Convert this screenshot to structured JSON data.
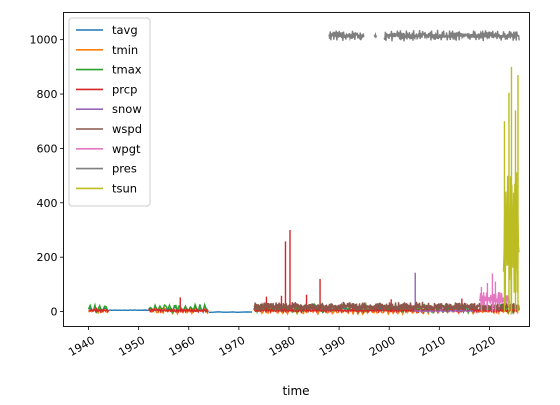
{
  "chart_data": {
    "type": "line",
    "xlabel": "time",
    "ylabel": "",
    "xlim": [
      1935,
      2028
    ],
    "ylim": [
      -55,
      1100
    ],
    "x_ticks": [
      1940,
      1950,
      1960,
      1970,
      1980,
      1990,
      2000,
      2010,
      2020
    ],
    "x_tick_labels": [
      "1940",
      "1950",
      "1960",
      "1970",
      "1980",
      "1990",
      "2000",
      "2010",
      "2020"
    ],
    "y_ticks": [
      0,
      200,
      400,
      600,
      800,
      1000
    ],
    "y_tick_labels": [
      "0",
      "200",
      "400",
      "600",
      "800",
      "1000"
    ],
    "legend_position": "top-left",
    "grid": false,
    "series": [
      {
        "name": "tavg",
        "color": "#1f77b4",
        "segments": [
          {
            "start": 1940,
            "end": 1944,
            "base": 8,
            "amp": 12,
            "cycle": 1
          },
          {
            "start": 1944,
            "end": 1952,
            "base": 5,
            "amp": 1,
            "cycle": 1
          },
          {
            "start": 1952,
            "end": 1964,
            "base": 8,
            "amp": 12,
            "cycle": 1
          },
          {
            "start": 1964,
            "end": 1973,
            "base": -2,
            "amp": 1,
            "cycle": 3
          },
          {
            "start": 1973,
            "end": 2026,
            "base": 8,
            "amp": 12,
            "cycle": 1
          }
        ]
      },
      {
        "name": "tmin",
        "color": "#ff7f0e",
        "segments": [
          {
            "start": 1940,
            "end": 1944,
            "base": 2,
            "amp": 12,
            "cycle": 1
          },
          {
            "start": 1952,
            "end": 1964,
            "base": 2,
            "amp": 12,
            "cycle": 1
          },
          {
            "start": 1973,
            "end": 2026,
            "base": 2,
            "amp": 12,
            "cycle": 1
          }
        ]
      },
      {
        "name": "tmax",
        "color": "#2ca02c",
        "segments": [
          {
            "start": 1940,
            "end": 1944,
            "base": 12,
            "amp": 18,
            "cycle": 1
          },
          {
            "start": 1952,
            "end": 1964,
            "base": 12,
            "amp": 18,
            "cycle": 1
          },
          {
            "start": 1973,
            "end": 1995,
            "base": 12,
            "amp": 17,
            "cycle": 1
          },
          {
            "start": 1995,
            "end": 2026,
            "base": 12,
            "amp": 17,
            "cycle": 1
          }
        ]
      },
      {
        "name": "prcp",
        "color": "#d62728",
        "segments": [
          {
            "start": 1940,
            "end": 1944,
            "base": 4,
            "amp": 6,
            "cycle": 0.5
          },
          {
            "start": 1952,
            "end": 1964,
            "base": 4,
            "amp": 6,
            "cycle": 0.5
          },
          {
            "start": 1973,
            "end": 2026,
            "base": 4,
            "amp": 6,
            "cycle": 0.5
          }
        ],
        "spikes": [
          [
            1958.3,
            52
          ],
          [
            1975.5,
            55
          ],
          [
            1978.5,
            58
          ],
          [
            1979.3,
            258
          ],
          [
            1980.2,
            300
          ],
          [
            1983.5,
            62
          ],
          [
            1986.2,
            120
          ],
          [
            2000.4,
            45
          ],
          [
            2014.5,
            48
          ]
        ]
      },
      {
        "name": "snow",
        "color": "#9467bd",
        "segments": [
          {
            "start": 2005,
            "end": 2017,
            "base": 2,
            "amp": 3,
            "cycle": 1
          }
        ],
        "spikes": [
          [
            2005.2,
            143
          ],
          [
            2010.5,
            30
          ]
        ]
      },
      {
        "name": "wspd",
        "color": "#8c564b",
        "segments": [
          {
            "start": 1973,
            "end": 2026,
            "base": 18,
            "amp": 18,
            "cycle": 0.2
          }
        ]
      },
      {
        "name": "wpgt",
        "color": "#e377c2",
        "segments": [
          {
            "start": 2018,
            "end": 2024,
            "base": 45,
            "amp": 30,
            "cycle": 0.2
          }
        ],
        "spikes": [
          [
            2018.4,
            90
          ],
          [
            2019.6,
            105
          ],
          [
            2020.6,
            140
          ],
          [
            2021.2,
            110
          ]
        ]
      },
      {
        "name": "pres",
        "color": "#7f7f7f",
        "segments": [
          {
            "start": 1988,
            "end": 1995,
            "base": 1015,
            "amp": 20,
            "cycle": 0.2
          },
          {
            "start": 1997,
            "end": 1997.5,
            "base": 1015,
            "amp": 10,
            "cycle": 0.2
          },
          {
            "start": 1999,
            "end": 2026,
            "base": 1015,
            "amp": 22,
            "cycle": 0.2
          }
        ]
      },
      {
        "name": "tsun",
        "color": "#bcbd22",
        "segments": [
          {
            "start": 2022.8,
            "end": 2026,
            "base": 250,
            "amp": 300,
            "cycle": 0.05
          }
        ],
        "spikes": [
          [
            2023.0,
            700
          ],
          [
            2023.9,
            805
          ],
          [
            2024.4,
            900
          ],
          [
            2025.2,
            740
          ],
          [
            2025.7,
            870
          ]
        ]
      }
    ]
  }
}
